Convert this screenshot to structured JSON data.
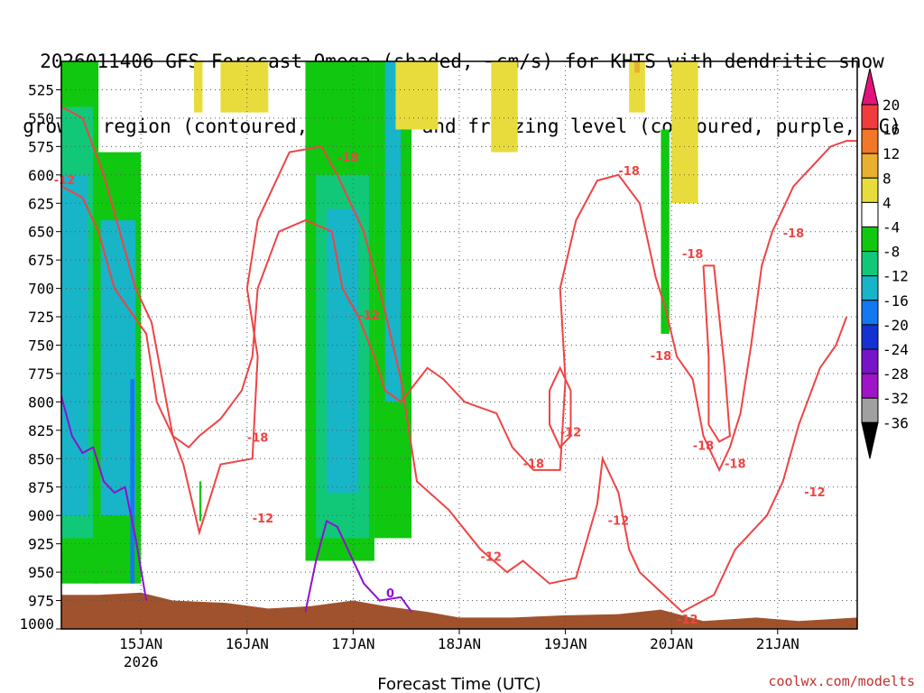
{
  "title_line1": "2026011406 GFS Forecast Omega (shaded, −cm/s) for KHTS with dendritic snow",
  "title_line2": "growth region (contoured, red, ºC) and freezing level (contoured, purple, ºC)",
  "credit": "coolwx.com/modelts",
  "colors": {
    "dgz_contour": "#ee4444",
    "freezing_contour": "#9010d0",
    "terrain": "#a0522d",
    "grid": "#555555"
  },
  "chart_data": {
    "type": "heatmap",
    "xlabel": "Forecast Time (UTC)",
    "x_unit": "days after 14JAN 00Z",
    "xlim": [
      0.25,
      7.75
    ],
    "ylim_hPa": [
      1000,
      500
    ],
    "ytick_labels": [
      "525",
      "550",
      "575",
      "600",
      "625",
      "650",
      "675",
      "700",
      "725",
      "750",
      "775",
      "800",
      "825",
      "850",
      "875",
      "900",
      "925",
      "950",
      "975",
      "1000"
    ],
    "xtick_labels": [
      {
        "label": "15JAN",
        "sub": "2026",
        "x": 1
      },
      {
        "label": "16JAN",
        "sub": "",
        "x": 2
      },
      {
        "label": "17JAN",
        "sub": "",
        "x": 3
      },
      {
        "label": "18JAN",
        "sub": "",
        "x": 4
      },
      {
        "label": "19JAN",
        "sub": "",
        "x": 5
      },
      {
        "label": "20JAN",
        "sub": "",
        "x": 6
      },
      {
        "label": "21JAN",
        "sub": "",
        "x": 7
      }
    ],
    "colorbar": {
      "labels": [
        "20",
        "16",
        "12",
        "8",
        "4",
        "-4",
        "-8",
        "-12",
        "-16",
        "-20",
        "-24",
        "-28",
        "-32",
        "-36"
      ],
      "colors": [
        "#f03c3c",
        "#f07828",
        "#e8b030",
        "#e8dc3c",
        "#ffffff",
        "#10c810",
        "#10c878",
        "#18b4c8",
        "#1478f0",
        "#1432d2",
        "#7814c8",
        "#a014c8",
        "#a0a0a0"
      ],
      "top_arrow": "#e0147a",
      "bottom_arrow": "#000000"
    },
    "omega_regions": [
      {
        "color": "#10c810",
        "t0": 0.25,
        "t1": 0.6,
        "p0": 500,
        "p1": 960
      },
      {
        "color": "#10c878",
        "t0": 0.25,
        "t1": 0.55,
        "p0": 540,
        "p1": 920
      },
      {
        "color": "#18b4c8",
        "t0": 0.25,
        "t1": 0.5,
        "p0": 600,
        "p1": 900
      },
      {
        "color": "#10c810",
        "t0": 0.55,
        "t1": 1.0,
        "p0": 580,
        "p1": 960
      },
      {
        "color": "#18b4c8",
        "t0": 0.62,
        "t1": 0.95,
        "p0": 640,
        "p1": 900
      },
      {
        "color": "#1478f0",
        "t0": 0.9,
        "t1": 0.94,
        "p0": 780,
        "p1": 960
      },
      {
        "color": "#10c810",
        "t0": 2.55,
        "t1": 3.2,
        "p0": 500,
        "p1": 940
      },
      {
        "color": "#10c878",
        "t0": 2.65,
        "t1": 3.15,
        "p0": 600,
        "p1": 920
      },
      {
        "color": "#18b4c8",
        "t0": 2.75,
        "t1": 3.05,
        "p0": 630,
        "p1": 880
      },
      {
        "color": "#10c810",
        "t0": 3.2,
        "t1": 3.55,
        "p0": 500,
        "p1": 920
      },
      {
        "color": "#18b4c8",
        "t0": 3.3,
        "t1": 3.45,
        "p0": 500,
        "p1": 800
      },
      {
        "color": "#1478f0",
        "t0": 3.42,
        "t1": 3.47,
        "p0": 500,
        "p1": 530
      },
      {
        "color": "#10c810",
        "t0": 1.55,
        "t1": 1.57,
        "p0": 870,
        "p1": 905
      },
      {
        "color": "#10c810",
        "t0": 5.9,
        "t1": 5.98,
        "p0": 560,
        "p1": 740
      },
      {
        "color": "#10c810",
        "t0": 3.7,
        "t1": 3.73,
        "p0": 500,
        "p1": 540
      },
      {
        "color": "#e8dc3c",
        "t0": 1.5,
        "t1": 1.58,
        "p0": 500,
        "p1": 545
      },
      {
        "color": "#e8dc3c",
        "t0": 1.75,
        "t1": 2.2,
        "p0": 500,
        "p1": 545
      },
      {
        "color": "#e8dc3c",
        "t0": 3.4,
        "t1": 3.8,
        "p0": 500,
        "p1": 560
      },
      {
        "color": "#e8dc3c",
        "t0": 4.3,
        "t1": 4.55,
        "p0": 500,
        "p1": 580
      },
      {
        "color": "#e8dc3c",
        "t0": 5.6,
        "t1": 5.75,
        "p0": 500,
        "p1": 545
      },
      {
        "color": "#e8dc3c",
        "t0": 6.0,
        "t1": 6.25,
        "p0": 500,
        "p1": 625
      },
      {
        "color": "#e8b030",
        "t0": 5.65,
        "t1": 5.7,
        "p0": 500,
        "p1": 510
      }
    ],
    "dgz_contours": [
      {
        "label": "-12",
        "pts": [
          [
            0.25,
            540
          ],
          [
            0.45,
            550
          ],
          [
            0.65,
            600
          ],
          [
            0.8,
            650
          ],
          [
            0.95,
            700
          ],
          [
            1.1,
            730
          ],
          [
            1.2,
            780
          ],
          [
            1.3,
            830
          ],
          [
            1.4,
            855
          ],
          [
            1.55,
            915
          ],
          [
            1.75,
            855
          ],
          [
            2.05,
            850
          ],
          [
            2.1,
            760
          ],
          [
            2.0,
            700
          ],
          [
            2.1,
            640
          ],
          [
            2.4,
            580
          ],
          [
            2.7,
            575
          ],
          [
            2.85,
            600
          ],
          [
            3.1,
            650
          ],
          [
            3.3,
            720
          ],
          [
            3.45,
            780
          ],
          [
            3.6,
            870
          ],
          [
            3.9,
            895
          ],
          [
            4.2,
            930
          ],
          [
            4.45,
            950
          ],
          [
            4.6,
            940
          ],
          [
            4.85,
            960
          ],
          [
            5.1,
            955
          ],
          [
            5.3,
            890
          ],
          [
            5.35,
            850
          ],
          [
            5.5,
            880
          ],
          [
            5.6,
            930
          ],
          [
            5.7,
            950
          ],
          [
            6.1,
            985
          ],
          [
            6.4,
            970
          ],
          [
            6.6,
            930
          ],
          [
            6.9,
            900
          ],
          [
            7.05,
            870
          ],
          [
            7.2,
            820
          ],
          [
            7.4,
            770
          ],
          [
            7.55,
            750
          ],
          [
            7.65,
            725
          ]
        ]
      },
      {
        "label": "-18",
        "pts": [
          [
            0.25,
            610
          ],
          [
            0.45,
            620
          ],
          [
            0.6,
            650
          ],
          [
            0.75,
            700
          ],
          [
            0.9,
            720
          ],
          [
            1.05,
            740
          ],
          [
            1.15,
            800
          ],
          [
            1.3,
            830
          ],
          [
            1.45,
            840
          ],
          [
            1.55,
            830
          ],
          [
            1.75,
            815
          ],
          [
            1.95,
            790
          ],
          [
            2.05,
            760
          ],
          [
            2.1,
            700
          ],
          [
            2.3,
            650
          ],
          [
            2.55,
            640
          ],
          [
            2.8,
            650
          ],
          [
            2.9,
            700
          ],
          [
            3.05,
            725
          ],
          [
            3.2,
            760
          ],
          [
            3.3,
            790
          ],
          [
            3.45,
            800
          ],
          [
            3.7,
            770
          ],
          [
            3.85,
            780
          ],
          [
            4.05,
            800
          ],
          [
            4.35,
            810
          ],
          [
            4.5,
            840
          ],
          [
            4.7,
            860
          ],
          [
            4.95,
            860
          ],
          [
            5.0,
            780
          ],
          [
            4.95,
            700
          ],
          [
            5.1,
            640
          ],
          [
            5.3,
            605
          ],
          [
            5.5,
            600
          ],
          [
            5.7,
            625
          ],
          [
            5.85,
            690
          ],
          [
            5.95,
            720
          ],
          [
            6.05,
            760
          ],
          [
            6.2,
            780
          ],
          [
            6.3,
            830
          ],
          [
            6.45,
            860
          ],
          [
            6.55,
            840
          ],
          [
            6.65,
            810
          ],
          [
            6.75,
            750
          ],
          [
            6.85,
            680
          ],
          [
            6.95,
            650
          ],
          [
            7.15,
            610
          ],
          [
            7.35,
            590
          ],
          [
            7.5,
            575
          ],
          [
            7.65,
            570
          ],
          [
            7.75,
            570
          ]
        ]
      },
      {
        "label": "-12",
        "pts": [
          [
            4.85,
            790
          ],
          [
            4.95,
            770
          ],
          [
            5.05,
            790
          ],
          [
            5.05,
            830
          ],
          [
            4.95,
            840
          ],
          [
            4.85,
            820
          ],
          [
            4.85,
            790
          ]
        ]
      },
      {
        "label": "-18",
        "pts": [
          [
            6.3,
            680
          ],
          [
            6.4,
            680
          ],
          [
            6.5,
            770
          ],
          [
            6.55,
            830
          ],
          [
            6.45,
            835
          ],
          [
            6.35,
            820
          ],
          [
            6.35,
            760
          ],
          [
            6.3,
            680
          ]
        ]
      }
    ],
    "contour_labels": [
      {
        "text": "-12",
        "x": 0.28,
        "p": 605
      },
      {
        "text": "-18",
        "x": 2.95,
        "p": 585
      },
      {
        "text": "-12",
        "x": 3.15,
        "p": 724
      },
      {
        "text": "-18",
        "x": 2.1,
        "p": 832
      },
      {
        "text": "-12",
        "x": 2.15,
        "p": 903
      },
      {
        "text": "-12",
        "x": 4.3,
        "p": 937
      },
      {
        "text": "-18",
        "x": 4.7,
        "p": 855
      },
      {
        "text": "-12",
        "x": 5.05,
        "p": 827
      },
      {
        "text": "-18",
        "x": 5.6,
        "p": 597
      },
      {
        "text": "-12",
        "x": 5.5,
        "p": 905
      },
      {
        "text": "-18",
        "x": 5.9,
        "p": 760
      },
      {
        "text": "-18",
        "x": 6.2,
        "p": 670
      },
      {
        "text": "-18",
        "x": 6.3,
        "p": 839
      },
      {
        "text": "-18",
        "x": 6.6,
        "p": 855
      },
      {
        "text": "-18",
        "x": 7.15,
        "p": 652
      },
      {
        "text": "-12",
        "x": 6.15,
        "p": 992
      },
      {
        "text": "-12",
        "x": 7.35,
        "p": 880
      }
    ],
    "freezing_contours": [
      {
        "label": "0",
        "pts": [
          [
            0.25,
            795
          ],
          [
            0.35,
            830
          ],
          [
            0.45,
            845
          ],
          [
            0.55,
            840
          ],
          [
            0.65,
            870
          ],
          [
            0.75,
            880
          ],
          [
            0.85,
            875
          ],
          [
            0.95,
            920
          ],
          [
            1.05,
            975
          ]
        ]
      },
      {
        "label": "0",
        "pts": [
          [
            2.55,
            985
          ],
          [
            2.65,
            940
          ],
          [
            2.75,
            905
          ],
          [
            2.85,
            910
          ],
          [
            2.95,
            930
          ],
          [
            3.1,
            960
          ],
          [
            3.25,
            975
          ],
          [
            3.45,
            972
          ],
          [
            3.55,
            985
          ]
        ]
      }
    ],
    "freezing_labels": [
      {
        "text": "0",
        "x": 3.35,
        "p": 969
      }
    ],
    "terrain_top": [
      [
        0.25,
        970
      ],
      [
        0.6,
        970
      ],
      [
        1.0,
        968
      ],
      [
        1.3,
        975
      ],
      [
        1.8,
        977
      ],
      [
        2.2,
        982
      ],
      [
        2.6,
        980
      ],
      [
        3.0,
        975
      ],
      [
        3.3,
        980
      ],
      [
        3.7,
        985
      ],
      [
        4.0,
        990
      ],
      [
        4.5,
        990
      ],
      [
        5.0,
        988
      ],
      [
        5.5,
        987
      ],
      [
        5.9,
        983
      ],
      [
        6.3,
        993
      ],
      [
        6.8,
        990
      ],
      [
        7.2,
        993
      ],
      [
        7.75,
        990
      ]
    ]
  }
}
